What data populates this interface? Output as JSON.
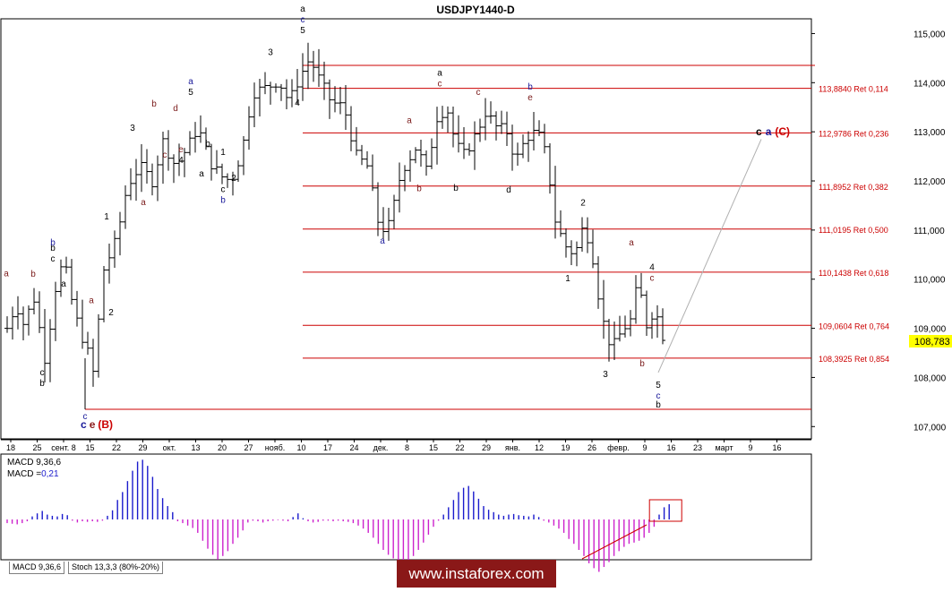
{
  "header": {
    "title": "USDJPY1440-D"
  },
  "price_axis": {
    "ticks": [
      "115,000",
      "114,000",
      "113,000",
      "112,000",
      "111,000",
      "110,000",
      "109,000",
      "108,000",
      "107,000"
    ],
    "current_price": "108,783"
  },
  "date_axis": {
    "labels": [
      "18",
      "25",
      "сент. 8",
      "15",
      "22",
      "29",
      "окт.",
      "13",
      "20",
      "27",
      "нояб.",
      "10",
      "17",
      "24",
      "дек.",
      "8",
      "15",
      "22",
      "29",
      "янв.",
      "12",
      "19",
      "26",
      "февр.",
      "9",
      "16",
      "23",
      "март",
      "9",
      "16"
    ]
  },
  "fib_levels": [
    {
      "price": 113.884,
      "label": "113,8840 Ret 0,114"
    },
    {
      "price": 112.9786,
      "label": "112,9786 Ret 0,236"
    },
    {
      "price": 111.8952,
      "label": "111,8952 Ret 0,382"
    },
    {
      "price": 111.0195,
      "label": "111,0195 Ret 0,500"
    },
    {
      "price": 110.1438,
      "label": "110,1438 Ret 0,618"
    },
    {
      "price": 109.0604,
      "label": "109,0604 Ret 0,764"
    },
    {
      "price": 108.3925,
      "label": "108,3925 Ret 0,854"
    }
  ],
  "wave_labels": [
    {
      "lines": [
        {
          "t": "a",
          "c": "#7a1a1a"
        }
      ],
      "x": 7,
      "y": 110.06
    },
    {
      "lines": [
        {
          "t": "b",
          "c": "#7a1a1a"
        }
      ],
      "x": 37,
      "y": 110.05
    },
    {
      "lines": [
        {
          "t": "c",
          "c": "#000000"
        },
        {
          "t": "b",
          "c": "#000000"
        }
      ],
      "x": 47,
      "y": 108.04
    },
    {
      "lines": [
        {
          "t": "b",
          "c": "#000000"
        },
        {
          "t": "c",
          "c": "#000000"
        }
      ],
      "x": 59,
      "y": 110.58
    },
    {
      "lines": [
        {
          "t": "b",
          "c": "#1a1a9a"
        }
      ],
      "x": 59,
      "y": 110.69
    },
    {
      "lines": [
        {
          "t": "a",
          "c": "#000000"
        }
      ],
      "x": 71,
      "y": 109.85
    },
    {
      "lines": [
        {
          "t": "a",
          "c": "#7a1a1a"
        }
      ],
      "x": 102,
      "y": 109.51
    },
    {
      "lines": [
        {
          "t": "1",
          "c": "#000000"
        }
      ],
      "x": 119,
      "y": 111.22
    },
    {
      "lines": [
        {
          "t": "2",
          "c": "#000000"
        }
      ],
      "x": 124,
      "y": 109.27
    },
    {
      "lines": [
        {
          "t": "3",
          "c": "#000000"
        }
      ],
      "x": 148,
      "y": 113.02
    },
    {
      "lines": [
        {
          "t": "a",
          "c": "#7a1a1a"
        }
      ],
      "x": 160,
      "y": 111.51
    },
    {
      "lines": [
        {
          "t": "b",
          "c": "#7a1a1a"
        }
      ],
      "x": 172,
      "y": 113.51
    },
    {
      "lines": [
        {
          "t": "c",
          "c": "#7a1a1a"
        }
      ],
      "x": 184,
      "y": 112.47
    },
    {
      "lines": [
        {
          "t": "d",
          "c": "#7a1a1a"
        }
      ],
      "x": 196,
      "y": 113.42
    },
    {
      "lines": [
        {
          "t": "e",
          "c": "#7a1a1a"
        },
        {
          "t": "4",
          "c": "#000000"
        }
      ],
      "x": 202,
      "y": 112.58
    },
    {
      "lines": [
        {
          "t": "a",
          "c": "#1a1a9a"
        },
        {
          "t": "5",
          "c": "#000000"
        }
      ],
      "x": 213,
      "y": 113.97
    },
    {
      "lines": [
        {
          "t": "a",
          "c": "#000000"
        }
      ],
      "x": 225,
      "y": 112.09
    },
    {
      "lines": [
        {
          "t": "b",
          "c": "#000000"
        }
      ],
      "x": 232,
      "y": 112.7
    },
    {
      "lines": [
        {
          "t": "1",
          "c": "#000000"
        }
      ],
      "x": 249,
      "y": 112.53
    },
    {
      "lines": [
        {
          "t": "c",
          "c": "#000000"
        },
        {
          "t": "b",
          "c": "#1a1a9a"
        }
      ],
      "x": 249,
      "y": 111.77
    },
    {
      "lines": [
        {
          "t": "2",
          "c": "#000000"
        }
      ],
      "x": 261,
      "y": 112.0
    },
    {
      "lines": [
        {
          "t": "3",
          "c": "#000000"
        }
      ],
      "x": 302,
      "y": 114.56
    },
    {
      "lines": [
        {
          "t": "4",
          "c": "#000000"
        }
      ],
      "x": 332,
      "y": 113.53
    },
    {
      "lines": [
        {
          "t": "a",
          "c": "#000000"
        },
        {
          "t": "c",
          "c": "#1a1a9a"
        },
        {
          "t": "5",
          "c": "#000000"
        }
      ],
      "x": 338,
      "y": 115.45
    },
    {
      "lines": [
        {
          "t": "a",
          "c": "#1a1a9a"
        }
      ],
      "x": 427,
      "y": 110.72
    },
    {
      "lines": [
        {
          "t": "a",
          "c": "#7a1a1a"
        }
      ],
      "x": 457,
      "y": 113.18
    },
    {
      "lines": [
        {
          "t": "b",
          "c": "#7a1a1a"
        }
      ],
      "x": 468,
      "y": 111.79
    },
    {
      "lines": [
        {
          "t": "a",
          "c": "#000000"
        },
        {
          "t": "c",
          "c": "#7a1a1a"
        }
      ],
      "x": 491,
      "y": 114.14
    },
    {
      "lines": [
        {
          "t": "b",
          "c": "#000000"
        }
      ],
      "x": 509,
      "y": 111.8
    },
    {
      "lines": [
        {
          "t": "c",
          "c": "#7a1a1a"
        }
      ],
      "x": 534,
      "y": 113.75
    },
    {
      "lines": [
        {
          "t": "d",
          "c": "#000000"
        }
      ],
      "x": 568,
      "y": 111.76
    },
    {
      "lines": [
        {
          "t": "b",
          "c": "#1a1a9a"
        },
        {
          "t": "e",
          "c": "#7a1a1a"
        }
      ],
      "x": 592,
      "y": 113.86
    },
    {
      "lines": [
        {
          "t": "2",
          "c": "#000000"
        }
      ],
      "x": 651,
      "y": 111.5
    },
    {
      "lines": [
        {
          "t": "1",
          "c": "#000000"
        }
      ],
      "x": 634,
      "y": 109.96
    },
    {
      "lines": [
        {
          "t": "3",
          "c": "#000000"
        }
      ],
      "x": 676,
      "y": 108.01
    },
    {
      "lines": [
        {
          "t": "a",
          "c": "#7a1a1a"
        }
      ],
      "x": 705,
      "y": 110.69
    },
    {
      "lines": [
        {
          "t": "4",
          "c": "#000000"
        },
        {
          "t": "c",
          "c": "#7a1a1a"
        }
      ],
      "x": 728,
      "y": 110.19
    },
    {
      "lines": [
        {
          "t": "b",
          "c": "#7a1a1a"
        }
      ],
      "x": 717,
      "y": 108.23
    },
    {
      "lines": [
        {
          "t": "5",
          "c": "#000000"
        },
        {
          "t": "c",
          "c": "#1a1a9a"
        }
      ],
      "x": 735,
      "y": 107.79
    },
    {
      "lines": [
        {
          "t": "b",
          "c": "#000000"
        }
      ],
      "x": 735,
      "y": 107.39
    }
  ],
  "major_labels": {
    "left": {
      "c1": "c",
      "c2": "c",
      "e": "e",
      "B": "(B)"
    },
    "right": {
      "c": "c",
      "a": "a",
      "C": "(C)"
    }
  },
  "colors": {
    "up": "#000000",
    "fib": "#cc0000",
    "hist_pos": "#1a1acc",
    "hist_neg": "#cc22cc",
    "current_price_bg": "#ffff00",
    "banner_bg": "#8a1818",
    "dark_red": "#8b1a1a",
    "blue": "#1a1a9a"
  },
  "macd_panel": {
    "line1": "MACD 9,36,6",
    "line2_label": "MACD =",
    "line2_value": "0,21",
    "tabs": [
      "MACD 9,36,6",
      "Stoch 13,3,3 (80%-20%)"
    ]
  },
  "banner": {
    "text": "www.instaforex.com"
  },
  "chart_data": {
    "type": "candlestick",
    "title": "USDJPY1440-D",
    "ylim": [
      106.75,
      115.3
    ],
    "anchors": [
      [
        0,
        109.0
      ],
      [
        10,
        109.5
      ],
      [
        18,
        109.1
      ],
      [
        30,
        109.6
      ],
      [
        43,
        108.3
      ],
      [
        52,
        109.7
      ],
      [
        63,
        110.4
      ],
      [
        75,
        109.3
      ],
      [
        90,
        108.5
      ],
      [
        96,
        108.1
      ],
      [
        108,
        110.2
      ],
      [
        122,
        110.8
      ],
      [
        134,
        111.9
      ],
      [
        148,
        112.3
      ],
      [
        162,
        112.0
      ],
      [
        174,
        112.8
      ],
      [
        188,
        112.3
      ],
      [
        202,
        112.7
      ],
      [
        213,
        113.1
      ],
      [
        226,
        112.4
      ],
      [
        238,
        112.1
      ],
      [
        250,
        112.0
      ],
      [
        262,
        112.6
      ],
      [
        274,
        113.8
      ],
      [
        290,
        113.9
      ],
      [
        303,
        114.05
      ],
      [
        315,
        113.6
      ],
      [
        326,
        114.1
      ],
      [
        338,
        114.5
      ],
      [
        350,
        114.0
      ],
      [
        362,
        113.6
      ],
      [
        376,
        113.5
      ],
      [
        390,
        112.5
      ],
      [
        402,
        112.3
      ],
      [
        416,
        111.0
      ],
      [
        427,
        111.1
      ],
      [
        440,
        112.2
      ],
      [
        457,
        112.7
      ],
      [
        468,
        112.2
      ],
      [
        480,
        113.3
      ],
      [
        491,
        113.5
      ],
      [
        500,
        112.8
      ],
      [
        509,
        112.5
      ],
      [
        522,
        112.9
      ],
      [
        534,
        113.4
      ],
      [
        546,
        113.1
      ],
      [
        558,
        113.0
      ],
      [
        568,
        112.4
      ],
      [
        580,
        112.9
      ],
      [
        592,
        113.0
      ],
      [
        602,
        112.5
      ],
      [
        612,
        111.2
      ],
      [
        622,
        110.7
      ],
      [
        634,
        110.5
      ],
      [
        642,
        111.0
      ],
      [
        651,
        110.8
      ],
      [
        660,
        109.7
      ],
      [
        668,
        108.9
      ],
      [
        676,
        108.6
      ],
      [
        688,
        109.0
      ],
      [
        698,
        109.2
      ],
      [
        705,
        110.1
      ],
      [
        712,
        109.0
      ],
      [
        720,
        109.3
      ],
      [
        728,
        109.2
      ],
      [
        735,
        108.6
      ]
    ],
    "macd_hist": [
      -0.06,
      -0.07,
      -0.08,
      -0.06,
      -0.03,
      0.05,
      0.1,
      0.14,
      0.08,
      0.06,
      0.05,
      0.09,
      0.07,
      -0.02,
      -0.05,
      -0.03,
      -0.04,
      -0.03,
      -0.04,
      -0.02,
      0.06,
      0.15,
      0.32,
      0.45,
      0.63,
      0.8,
      0.95,
      0.98,
      0.88,
      0.7,
      0.5,
      0.35,
      0.22,
      0.12,
      -0.03,
      -0.06,
      -0.1,
      -0.14,
      -0.22,
      -0.35,
      -0.48,
      -0.58,
      -0.66,
      -0.6,
      -0.52,
      -0.4,
      -0.3,
      -0.18,
      -0.05,
      -0.02,
      -0.03,
      -0.05,
      -0.03,
      -0.02,
      -0.01,
      -0.02,
      -0.03,
      0.04,
      0.1,
      0.02,
      -0.03,
      -0.05,
      -0.04,
      -0.02,
      -0.02,
      -0.03,
      -0.02,
      -0.03,
      -0.04,
      -0.06,
      -0.1,
      -0.15,
      -0.22,
      -0.3,
      -0.4,
      -0.5,
      -0.58,
      -0.64,
      -0.68,
      -0.7,
      -0.68,
      -0.6,
      -0.5,
      -0.38,
      -0.25,
      -0.12,
      -0.02,
      0.08,
      0.2,
      0.32,
      0.45,
      0.52,
      0.55,
      0.46,
      0.34,
      0.22,
      0.16,
      0.12,
      0.08,
      0.06,
      0.08,
      0.09,
      0.07,
      0.06,
      0.05,
      0.08,
      0.04,
      -0.02,
      -0.05,
      -0.1,
      -0.15,
      -0.22,
      -0.32,
      -0.4,
      -0.5,
      -0.6,
      -0.72,
      -0.8,
      -0.86,
      -0.78,
      -0.7,
      -0.6,
      -0.52,
      -0.45,
      -0.4,
      -0.38,
      -0.35,
      -0.3,
      -0.22,
      -0.12,
      0.08,
      0.2,
      0.25
    ],
    "projection": {
      "from_price": 108.1,
      "to_price": 112.85
    },
    "red_box_bars": [
      134,
      136
    ],
    "trend_line_bars": [
      118,
      134
    ]
  }
}
